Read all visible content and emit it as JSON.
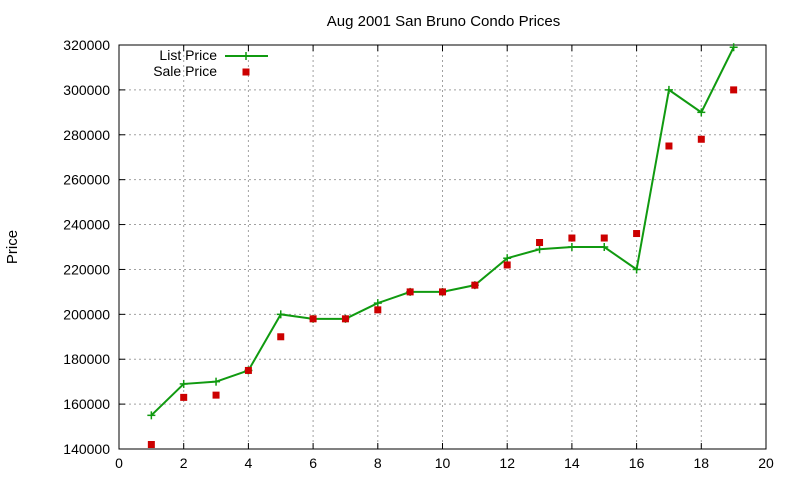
{
  "chart_data": {
    "type": "line",
    "title": "Aug 2001 San Bruno Condo Prices",
    "xlabel": "",
    "ylabel": "Price",
    "xlim": [
      0,
      20
    ],
    "ylim": [
      140000,
      320000
    ],
    "x_ticks": [
      "0",
      "2",
      "4",
      "6",
      "8",
      "10",
      "12",
      "14",
      "16",
      "18",
      "20"
    ],
    "y_ticks": [
      "140000",
      "160000",
      "180000",
      "200000",
      "220000",
      "240000",
      "260000",
      "280000",
      "300000",
      "320000"
    ],
    "grid": true,
    "legend_position": "top-left",
    "series": [
      {
        "name": "List Price",
        "style": "line-with-plus-markers",
        "color": "#109a10",
        "x": [
          1,
          2,
          3,
          4,
          5,
          6,
          7,
          8,
          9,
          10,
          11,
          12,
          13,
          14,
          15,
          16,
          17,
          18,
          19
        ],
        "y": [
          155000,
          169000,
          170000,
          175000,
          200000,
          198000,
          198000,
          205000,
          210000,
          210000,
          213000,
          225000,
          229000,
          230000,
          230000,
          220000,
          300000,
          290000,
          319000
        ]
      },
      {
        "name": "Sale Price",
        "style": "square-markers",
        "color": "#cc0000",
        "x": [
          1,
          2,
          3,
          4,
          5,
          6,
          7,
          8,
          9,
          10,
          11,
          12,
          13,
          14,
          15,
          16,
          17,
          18,
          19
        ],
        "y": [
          142000,
          163000,
          164000,
          175000,
          190000,
          198000,
          198000,
          202000,
          210000,
          210000,
          213000,
          222000,
          232000,
          234000,
          234000,
          236000,
          275000,
          278000,
          300000
        ]
      }
    ]
  }
}
